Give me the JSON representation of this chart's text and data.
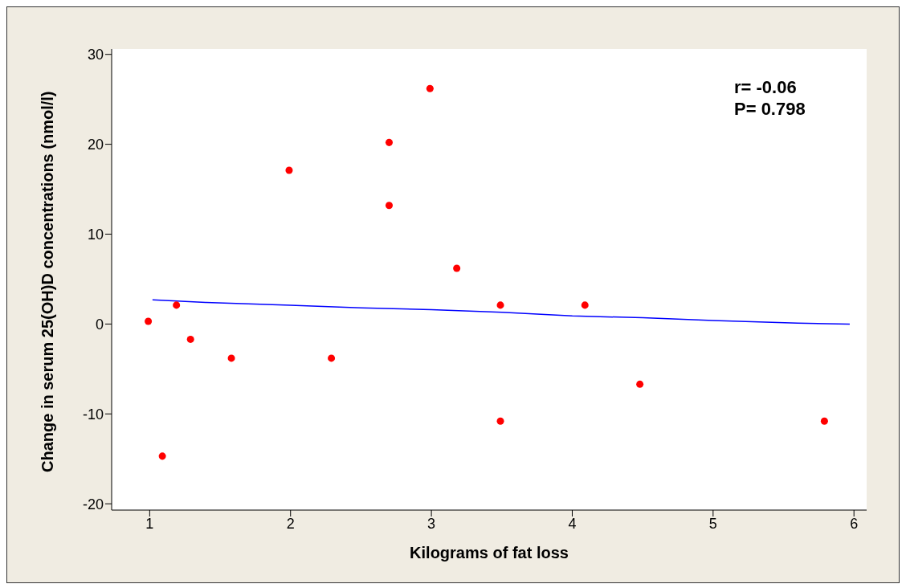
{
  "chart_data": {
    "type": "scatter",
    "xlabel": "Kilograms of fat loss",
    "ylabel": "Change in serum 25(OH)D concentrations (nmol/l)",
    "annotations": [
      "r= -0.06",
      "P= 0.798"
    ],
    "series": [
      {
        "marker": "circle",
        "color": "#ff0000",
        "x": [
          0.99,
          1.09,
          1.19,
          1.29,
          1.58,
          1.99,
          2.29,
          2.7,
          2.7,
          2.99,
          3.18,
          3.49,
          3.49,
          4.09,
          4.48,
          5.79
        ],
        "values": [
          0.3,
          -14.7,
          2.1,
          -1.7,
          -3.8,
          17.1,
          -3.8,
          20.2,
          13.2,
          26.2,
          6.2,
          2.1,
          -10.8,
          2.1,
          -6.7,
          -10.8
        ]
      },
      {
        "type": "line",
        "marker": "none",
        "color": "#0000ff",
        "x": [
          1.02,
          1.4,
          2,
          2.5,
          3,
          3.5,
          4,
          4.5,
          5,
          5.6,
          5.97
        ],
        "values": [
          2.7,
          2.4,
          2.1,
          1.8,
          1.6,
          1.3,
          0.9,
          0.7,
          0.4,
          0.1,
          0.0
        ]
      }
    ],
    "xlim": [
      0.73,
      6.09
    ],
    "xticks": [
      1,
      2,
      3,
      4,
      5,
      6
    ],
    "ylim": [
      -20.7,
      30.6
    ],
    "yticks": [
      -20,
      -10,
      0,
      10,
      20,
      30
    ],
    "grid": false,
    "legend": false,
    "line_style": "solid"
  }
}
